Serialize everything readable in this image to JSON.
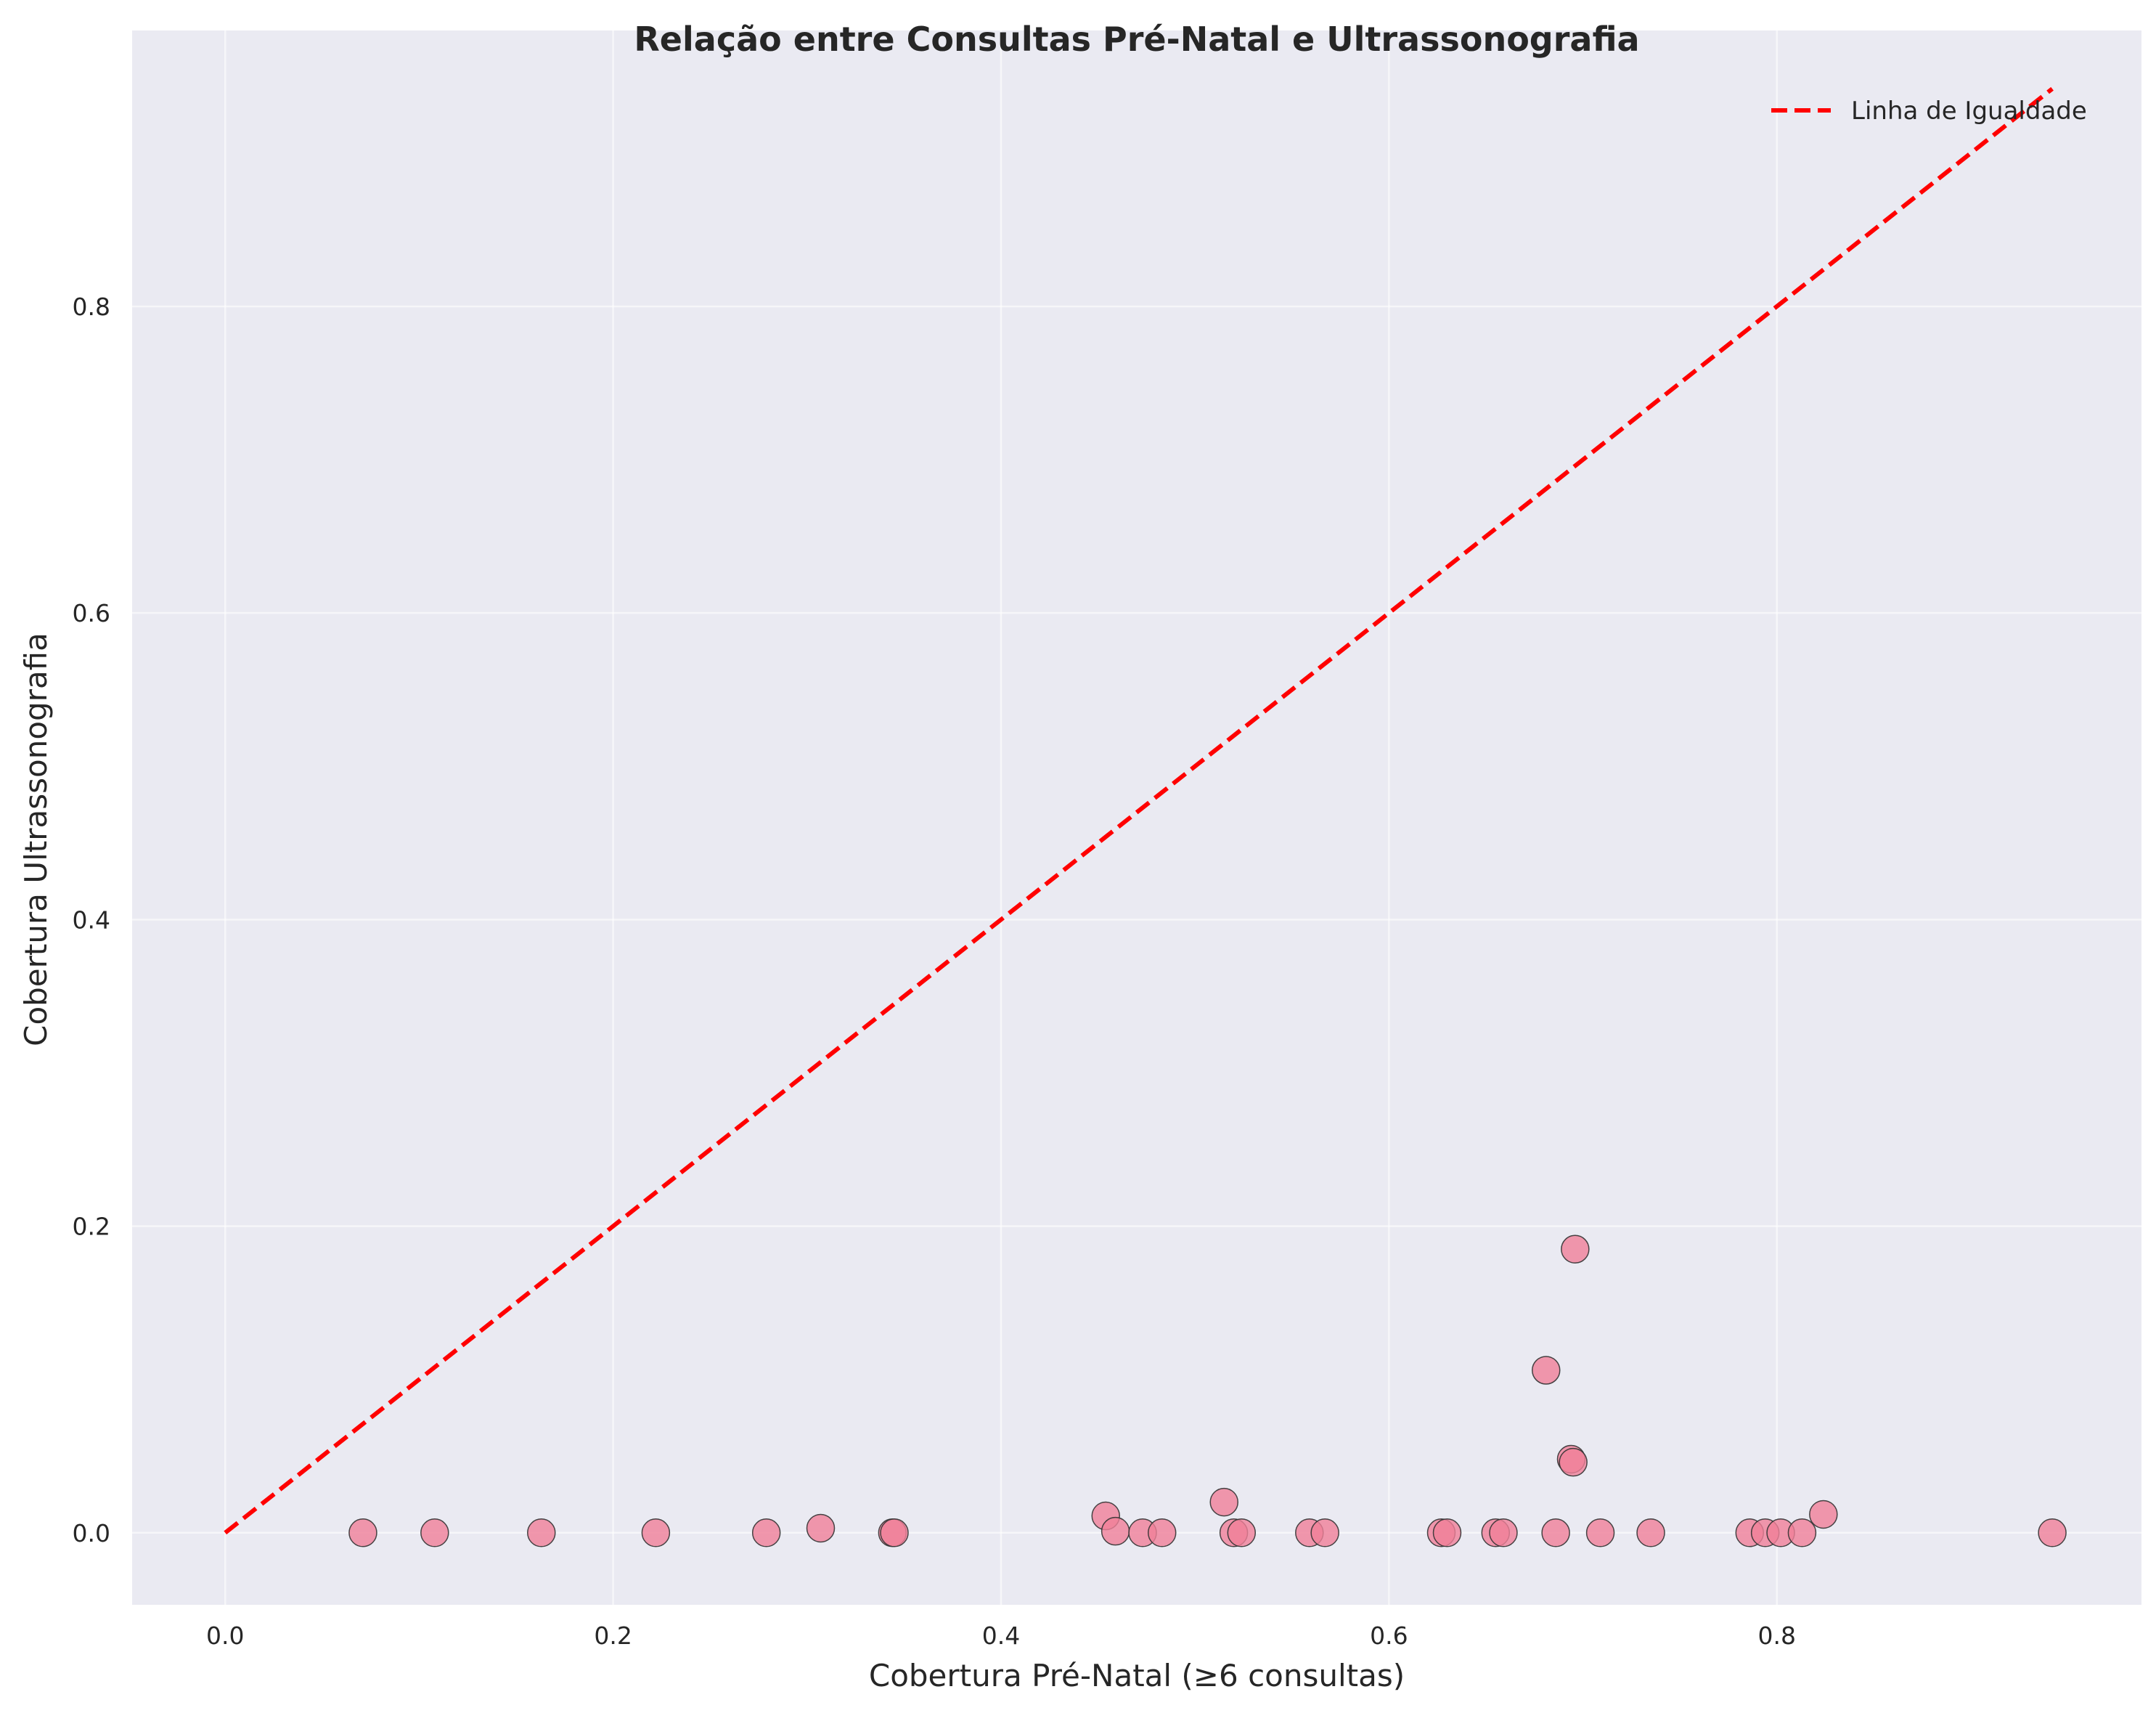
{
  "chart_data": {
    "type": "scatter",
    "title": "Relação entre Consultas Pré-Natal e Ultrassonografia",
    "xlabel": "Cobertura Pré-Natal (≥6 consultas)",
    "ylabel": "Cobertura Ultrassonografia",
    "xlim": [
      -0.048,
      0.988
    ],
    "ylim": [
      -0.047,
      0.98
    ],
    "xticks": [
      0.0,
      0.2,
      0.4,
      0.6,
      0.8
    ],
    "xtick_labels": [
      "0.0",
      "0.2",
      "0.4",
      "0.6",
      "0.8"
    ],
    "yticks": [
      0.0,
      0.2,
      0.4,
      0.6,
      0.8
    ],
    "ytick_labels": [
      "0.0",
      "0.2",
      "0.4",
      "0.6",
      "0.8"
    ],
    "grid": true,
    "legend": {
      "position": "top-right",
      "entries": [
        "Linha de Igualdade"
      ]
    },
    "reference_line": {
      "name": "Linha de Igualdade",
      "x": [
        0.0,
        0.942
      ],
      "y": [
        0.0,
        0.942
      ],
      "style": "dashed",
      "color": "#ff0000"
    },
    "marker_color": "#f07f99",
    "marker_edge_color": "#333333",
    "background_color": "#eaeaf2",
    "points": [
      {
        "x": 0.071,
        "y": 0.0
      },
      {
        "x": 0.108,
        "y": 0.0
      },
      {
        "x": 0.163,
        "y": 0.0
      },
      {
        "x": 0.222,
        "y": 0.0
      },
      {
        "x": 0.279,
        "y": 0.0
      },
      {
        "x": 0.307,
        "y": 0.003
      },
      {
        "x": 0.344,
        "y": 0.0
      },
      {
        "x": 0.345,
        "y": 0.0
      },
      {
        "x": 0.454,
        "y": 0.011
      },
      {
        "x": 0.459,
        "y": 0.001
      },
      {
        "x": 0.473,
        "y": 0.0
      },
      {
        "x": 0.483,
        "y": 0.0
      },
      {
        "x": 0.515,
        "y": 0.02
      },
      {
        "x": 0.52,
        "y": 0.0
      },
      {
        "x": 0.524,
        "y": 0.0
      },
      {
        "x": 0.559,
        "y": 0.0
      },
      {
        "x": 0.567,
        "y": 0.0
      },
      {
        "x": 0.627,
        "y": 0.0
      },
      {
        "x": 0.63,
        "y": 0.0
      },
      {
        "x": 0.655,
        "y": 0.0
      },
      {
        "x": 0.659,
        "y": 0.0
      },
      {
        "x": 0.681,
        "y": 0.106
      },
      {
        "x": 0.686,
        "y": 0.0
      },
      {
        "x": 0.694,
        "y": 0.048
      },
      {
        "x": 0.695,
        "y": 0.046
      },
      {
        "x": 0.696,
        "y": 0.185
      },
      {
        "x": 0.709,
        "y": 0.0
      },
      {
        "x": 0.735,
        "y": 0.0
      },
      {
        "x": 0.786,
        "y": 0.0
      },
      {
        "x": 0.794,
        "y": 0.0
      },
      {
        "x": 0.802,
        "y": 0.0
      },
      {
        "x": 0.813,
        "y": 0.0
      },
      {
        "x": 0.824,
        "y": 0.012
      },
      {
        "x": 0.942,
        "y": 0.0
      }
    ]
  }
}
